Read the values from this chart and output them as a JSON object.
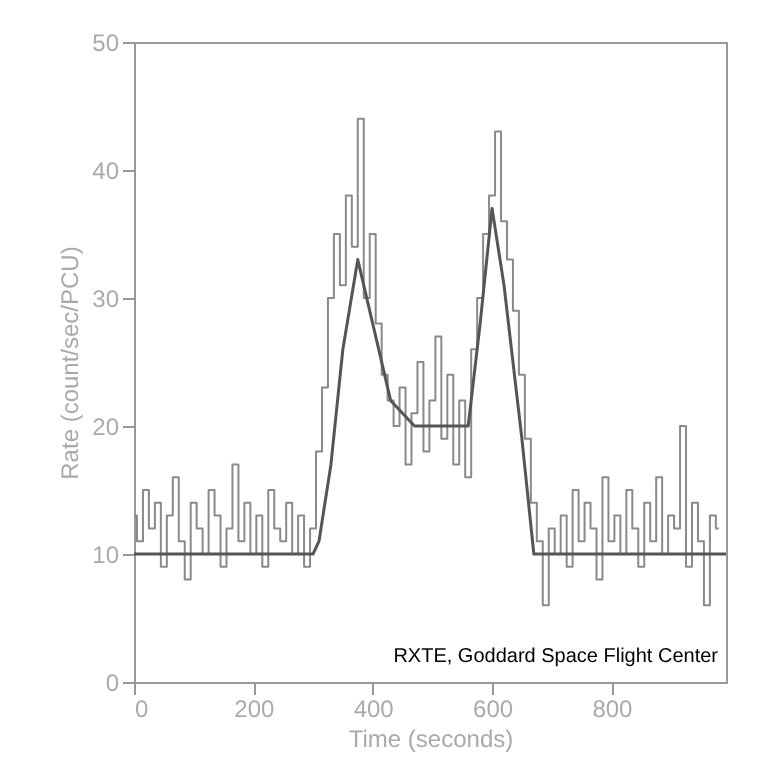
{
  "chart_data": {
    "type": "line",
    "xlabel": "Time (seconds)",
    "ylabel": "Rate (count/sec/PCU)",
    "xlim": [
      0,
      992
    ],
    "ylim": [
      0,
      50
    ],
    "xticks": [
      0,
      200,
      400,
      600,
      800
    ],
    "yticks": [
      0,
      10,
      20,
      30,
      40,
      50
    ],
    "annotations": [
      "RXTE, Goddard Space Flight Center"
    ],
    "series": [
      {
        "type": "step",
        "color": "#8a8a8a",
        "x": [
          0,
          10,
          20,
          30,
          40,
          50,
          60,
          70,
          80,
          90,
          100,
          110,
          120,
          130,
          140,
          150,
          160,
          170,
          180,
          190,
          200,
          210,
          220,
          230,
          240,
          250,
          260,
          270,
          280,
          290,
          300,
          310,
          320,
          330,
          340,
          350,
          360,
          370,
          380,
          390,
          400,
          410,
          420,
          430,
          440,
          450,
          460,
          470,
          480,
          490,
          500,
          510,
          520,
          530,
          540,
          550,
          560,
          570,
          580,
          590,
          600,
          610,
          620,
          630,
          640,
          650,
          660,
          670,
          680,
          690,
          700,
          710,
          720,
          730,
          740,
          750,
          760,
          770,
          780,
          790,
          800,
          810,
          820,
          830,
          840,
          850,
          860,
          870,
          880,
          890,
          900,
          910,
          920,
          930,
          940,
          950,
          960,
          970,
          980
        ],
        "values": [
          13,
          11,
          15,
          12,
          14,
          9,
          13,
          16,
          11,
          8,
          14,
          12,
          10,
          15,
          13,
          9,
          12,
          17,
          11,
          14,
          10,
          13,
          9,
          15,
          12,
          11,
          14,
          10,
          13,
          9,
          12,
          18,
          23,
          30,
          35,
          31,
          38,
          34,
          44,
          30,
          35,
          28,
          24,
          22,
          20,
          23,
          17,
          21,
          25,
          18,
          22,
          27,
          19,
          24,
          17,
          22,
          16,
          26,
          30,
          35,
          38,
          43,
          36,
          33,
          29,
          24,
          19,
          14,
          11,
          6,
          12,
          10,
          13,
          9,
          15,
          11,
          14,
          12,
          8,
          16,
          11,
          13,
          10,
          15,
          12,
          9,
          14,
          11,
          16,
          10,
          13,
          12,
          20,
          9,
          14,
          11,
          6,
          13,
          12
        ]
      },
      {
        "type": "line",
        "color": "#555555",
        "x": [
          0,
          300,
          310,
          330,
          350,
          375,
          400,
          430,
          470,
          560,
          580,
          600,
          620,
          650,
          670,
          992
        ],
        "values": [
          10,
          10,
          11,
          17,
          26,
          33,
          28,
          22,
          20,
          20,
          28,
          37,
          31,
          19,
          10,
          10
        ]
      }
    ]
  }
}
